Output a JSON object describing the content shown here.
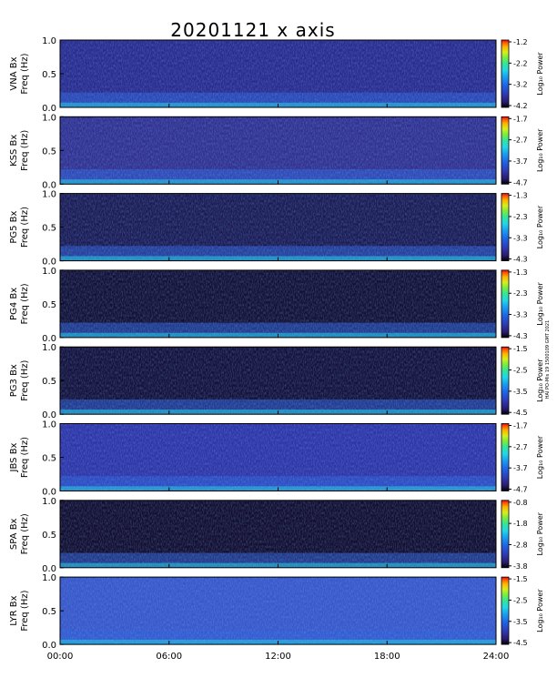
{
  "title": "20201121  x axis",
  "side_note": "HAI PO-Mis 19 1500109 GMT 2021",
  "colorbar_label": "Log₁₀ Power",
  "colors": {
    "palette": [
      "#000000",
      "#1b0a3a",
      "#2a1a6e",
      "#2f3bb4",
      "#1f64e6",
      "#1a9ef0",
      "#22d6e6",
      "#33e59a",
      "#7ded3a",
      "#d7ee1e",
      "#ffb300",
      "#ff5a00",
      "#e6001a"
    ]
  },
  "chart_data": {
    "type": "heatmap",
    "x_tick_labels": [
      "00:00",
      "06:00",
      "12:00",
      "18:00",
      "24:00"
    ],
    "xlim": [
      0,
      24
    ],
    "ylim": [
      0,
      1.0
    ],
    "y_tick_labels": [
      "0.0",
      "0.5",
      "1.0"
    ],
    "panels": [
      {
        "station": "VNA Bx",
        "ylabel": "Freq (Hz)",
        "colorbar_ticks": [
          "-1.2",
          "-2.2",
          "-3.2",
          "-4.2"
        ]
      },
      {
        "station": "KSS Bx",
        "ylabel": "Freq (Hz)",
        "colorbar_ticks": [
          "-1.7",
          "-2.7",
          "-3.7",
          "-4.7"
        ]
      },
      {
        "station": "PG5 Bx",
        "ylabel": "Freq (Hz)",
        "colorbar_ticks": [
          "-1.3",
          "-2.3",
          "-3.3",
          "-4.3"
        ]
      },
      {
        "station": "PG4 Bx",
        "ylabel": "Freq (Hz)",
        "colorbar_ticks": [
          "-1.3",
          "-2.3",
          "-3.3",
          "-4.3"
        ]
      },
      {
        "station": "PG3 Bx",
        "ylabel": "Freq (Hz)",
        "colorbar_ticks": [
          "-1.5",
          "-2.5",
          "-3.5",
          "-4.5"
        ]
      },
      {
        "station": "JBS Bx",
        "ylabel": "Freq (Hz)",
        "colorbar_ticks": [
          "-1.7",
          "-2.7",
          "-3.7",
          "-4.7"
        ]
      },
      {
        "station": "SPA Bx",
        "ylabel": "Freq (Hz)",
        "colorbar_ticks": [
          "-0.8",
          "-1.8",
          "-2.8",
          "-3.8"
        ]
      },
      {
        "station": "LYR Bx",
        "ylabel": "Freq (Hz)",
        "colorbar_ticks": [
          "-1.5",
          "-2.5",
          "-3.5",
          "-4.5"
        ]
      }
    ]
  }
}
